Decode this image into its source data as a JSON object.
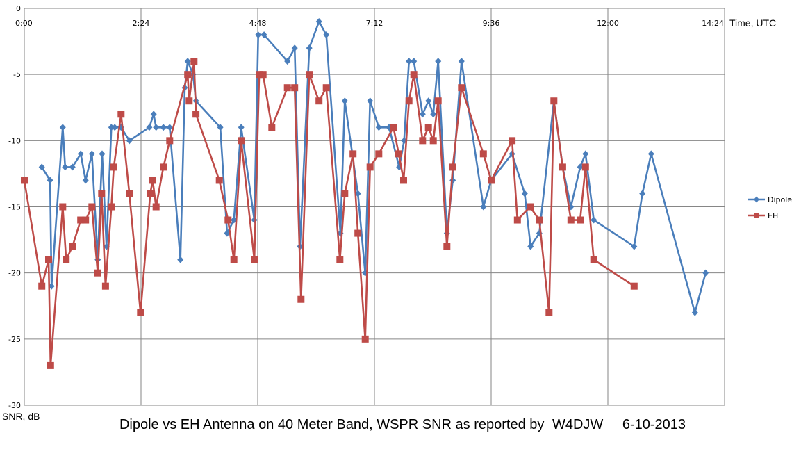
{
  "chart_data": {
    "type": "line",
    "title": "Dipole vs EH Antenna on 40 Meter Band, WSPR SNR as reported by",
    "callsign": "W4DJW",
    "date": "6-10-2013",
    "xlabel": "Time, UTC",
    "ylabel": "SNR, dB",
    "x_unit": "hours UTC",
    "xlim": [
      0,
      14.4
    ],
    "ylim": [
      -30,
      0
    ],
    "x_ticks": [
      0,
      2.4,
      4.8,
      7.2,
      9.6,
      12,
      14.4
    ],
    "x_tick_labels": [
      "0:00",
      "2:24",
      "4:48",
      "7:12",
      "9:36",
      "12:00",
      "14:24"
    ],
    "y_ticks": [
      0,
      -5,
      -10,
      -15,
      -20,
      -25,
      -30
    ],
    "y_tick_labels": [
      "0",
      "-5",
      "-10",
      "-15",
      "-20",
      "-25",
      "-30"
    ],
    "grid": true,
    "legend": "right",
    "series": [
      {
        "name": "Dipole",
        "color": "#4A7EBB",
        "marker": "diamond",
        "x": [
          0.36,
          0.53,
          0.56,
          0.79,
          0.84,
          0.99,
          1.16,
          1.26,
          1.39,
          1.51,
          1.6,
          1.69,
          1.79,
          1.86,
          1.99,
          2.16,
          2.57,
          2.66,
          2.71,
          2.86,
          2.99,
          3.21,
          3.3,
          3.36,
          3.47,
          3.53,
          4.03,
          4.17,
          4.31,
          4.46,
          4.73,
          4.81,
          4.93,
          5.41,
          5.56,
          5.67,
          5.86,
          6.06,
          6.21,
          6.5,
          6.59,
          6.86,
          7.01,
          7.11,
          7.29,
          7.5,
          7.71,
          7.81,
          7.91,
          8.01,
          8.19,
          8.31,
          8.41,
          8.51,
          8.69,
          8.81,
          8.99,
          9.44,
          9.6,
          10.03,
          10.29,
          10.41,
          10.59,
          10.89,
          11.07,
          11.24,
          11.43,
          11.54,
          11.71,
          12.54,
          12.71,
          12.89,
          13.79,
          14.01
        ],
        "y": [
          -12,
          -13,
          -21,
          -9,
          -12,
          -12,
          -11,
          -13,
          -11,
          -19,
          -11,
          -18,
          -9,
          -9,
          -9,
          -10,
          -9,
          -8,
          -9,
          -9,
          -9,
          -19,
          -6,
          -4,
          -5,
          -7,
          -9,
          -17,
          -16,
          -9,
          -16,
          -2,
          -2,
          -4,
          -3,
          -18,
          -3,
          -1,
          -2,
          -17,
          -7,
          -14,
          -20,
          -7,
          -9,
          -9,
          -12,
          -10,
          -4,
          -4,
          -8,
          -7,
          -8,
          -4,
          -17,
          -13,
          -4,
          -15,
          -13,
          -11,
          -14,
          -18,
          -17,
          -7,
          -12,
          -15,
          -12,
          -11,
          -16,
          -18,
          -14,
          -11,
          -23,
          -20
        ]
      },
      {
        "name": "EH",
        "color": "#BE4B48",
        "marker": "square",
        "x": [
          0,
          0.36,
          0.5,
          0.54,
          0.79,
          0.86,
          0.99,
          1.16,
          1.26,
          1.39,
          1.51,
          1.59,
          1.67,
          1.79,
          1.84,
          1.99,
          2.16,
          2.39,
          2.59,
          2.64,
          2.71,
          2.86,
          2.99,
          3.36,
          3.39,
          3.49,
          3.53,
          4.01,
          4.19,
          4.31,
          4.46,
          4.73,
          4.83,
          4.91,
          5.09,
          5.41,
          5.56,
          5.69,
          5.86,
          6.06,
          6.21,
          6.49,
          6.59,
          6.76,
          6.86,
          7.01,
          7.11,
          7.29,
          7.59,
          7.7,
          7.8,
          7.91,
          8.01,
          8.19,
          8.31,
          8.41,
          8.51,
          8.69,
          8.81,
          8.99,
          9.44,
          9.6,
          10.03,
          10.14,
          10.4,
          10.59,
          10.79,
          10.89,
          11.07,
          11.24,
          11.43,
          11.54,
          11.71,
          12.54
        ],
        "y": [
          -13,
          -21,
          -19,
          -27,
          -15,
          -19,
          -18,
          -16,
          -16,
          -15,
          -20,
          -14,
          -21,
          -15,
          -12,
          -8,
          -14,
          -23,
          -14,
          -13,
          -15,
          -12,
          -10,
          -5,
          -7,
          -4,
          -8,
          -13,
          -16,
          -19,
          -10,
          -19,
          -5,
          -5,
          -9,
          -6,
          -6,
          -22,
          -5,
          -7,
          -6,
          -19,
          -14,
          -11,
          -17,
          -25,
          -12,
          -11,
          -9,
          -11,
          -13,
          -7,
          -5,
          -10,
          -9,
          -10,
          -7,
          -18,
          -12,
          -6,
          -11,
          -13,
          -10,
          -16,
          -15,
          -16,
          -23,
          -7,
          -12,
          -16,
          -16,
          -12,
          -19,
          -21
        ]
      }
    ]
  }
}
